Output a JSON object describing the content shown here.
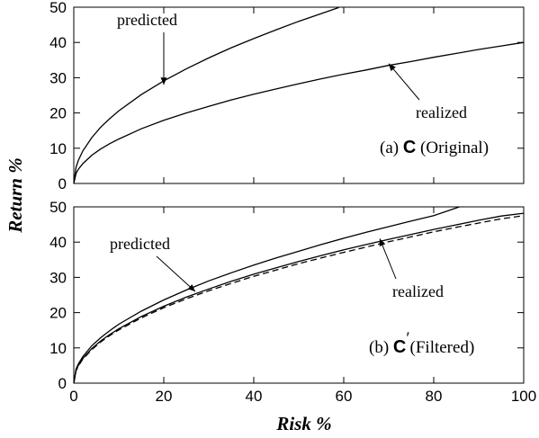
{
  "figure": {
    "xlabel": "Risk %",
    "ylabel": "Return %"
  },
  "chart_data": [
    {
      "type": "line",
      "panel": "top",
      "label_prefix": "(a)",
      "label_symbol": "C",
      "label_suffix": "(Original)",
      "xlim": [
        0,
        100
      ],
      "ylim": [
        0,
        50
      ],
      "xticks": [
        0,
        20,
        40,
        60,
        80,
        100
      ],
      "yticks": [
        0,
        10,
        20,
        30,
        40,
        50
      ],
      "show_xtick_labels": false,
      "annotations": [
        {
          "text": "predicted",
          "target": [
            20,
            28
          ]
        },
        {
          "text": "realized",
          "target": [
            70,
            34
          ]
        }
      ],
      "series": [
        {
          "x": [
            0,
            0.5,
            1,
            2,
            4,
            6,
            8,
            10,
            15,
            20,
            25,
            30,
            35,
            40,
            45,
            50,
            55,
            58.9
          ],
          "y": [
            0,
            4.6,
            6.5,
            9.2,
            13.0,
            16.0,
            18.4,
            20.6,
            25.2,
            29.1,
            32.5,
            35.6,
            38.5,
            41.1,
            43.6,
            46.0,
            48.2,
            49.9
          ],
          "style": "solid"
        },
        {
          "x": [
            0,
            0.5,
            1,
            2,
            4,
            6,
            8,
            10,
            15,
            20,
            25,
            30,
            35,
            40,
            45,
            50,
            55,
            60,
            65,
            70,
            75,
            80,
            85,
            90,
            95,
            100
          ],
          "y": [
            0,
            2.8,
            4.0,
            5.6,
            8.0,
            9.8,
            11.3,
            12.6,
            15.5,
            17.9,
            20.0,
            21.9,
            23.7,
            25.3,
            26.8,
            28.3,
            29.7,
            31.0,
            32.2,
            33.5,
            34.6,
            35.8,
            36.9,
            38.0,
            39.0,
            40.0
          ],
          "style": "solid"
        }
      ]
    },
    {
      "type": "line",
      "panel": "bottom",
      "label_prefix": "(b)",
      "label_symbol": "C",
      "label_prime": "′",
      "label_suffix": "(Filtered)",
      "xlim": [
        0,
        100
      ],
      "ylim": [
        0,
        50
      ],
      "xticks": [
        0,
        20,
        40,
        60,
        80,
        100
      ],
      "yticks": [
        0,
        10,
        20,
        30,
        40,
        50
      ],
      "show_xtick_labels": true,
      "annotations": [
        {
          "text": "predicted",
          "target": [
            27,
            26
          ]
        },
        {
          "text": "realized",
          "target": [
            68,
            41
          ]
        }
      ],
      "series": [
        {
          "x": [
            0,
            0.5,
            1,
            2,
            4,
            6,
            8,
            10,
            15,
            20,
            25,
            30,
            35,
            40,
            45,
            50,
            55,
            60,
            65,
            70,
            75,
            80,
            85.7
          ],
          "y": [
            0,
            4.0,
            5.4,
            7.5,
            10.6,
            12.9,
            14.9,
            16.7,
            20.4,
            23.6,
            26.4,
            29.0,
            31.3,
            33.5,
            35.5,
            37.4,
            39.3,
            41.1,
            42.8,
            44.4,
            46.0,
            47.5,
            50.0
          ],
          "style": "solid"
        },
        {
          "x": [
            0,
            0.5,
            1,
            2,
            4,
            6,
            8,
            10,
            15,
            20,
            25,
            30,
            35,
            40,
            45,
            50,
            55,
            60,
            65,
            70,
            75,
            80,
            85,
            90,
            95,
            100
          ],
          "y": [
            0,
            3.6,
            5.0,
            7.0,
            9.8,
            12.0,
            13.8,
            15.4,
            18.9,
            21.8,
            24.4,
            26.7,
            28.9,
            30.9,
            32.7,
            34.5,
            36.2,
            37.8,
            39.3,
            40.8,
            42.2,
            43.6,
            44.9,
            46.2,
            47.4,
            48.2
          ],
          "style": "solid"
        },
        {
          "x": [
            0,
            0.5,
            1,
            2,
            4,
            6,
            8,
            10,
            15,
            20,
            25,
            30,
            35,
            40,
            45,
            50,
            55,
            60,
            65,
            70,
            75,
            80,
            85,
            90,
            95,
            100
          ],
          "y": [
            0,
            3.5,
            4.8,
            6.8,
            9.5,
            11.7,
            13.5,
            15.1,
            18.5,
            21.4,
            23.9,
            26.2,
            28.3,
            30.3,
            32.1,
            33.9,
            35.5,
            37.1,
            38.6,
            40.1,
            41.5,
            42.9,
            44.2,
            45.4,
            46.6,
            47.5
          ],
          "style": "dashed"
        }
      ]
    }
  ]
}
